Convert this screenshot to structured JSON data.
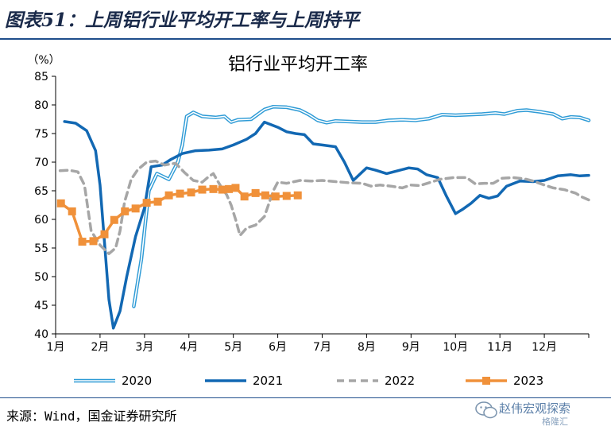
{
  "figure_title": "图表51：上周铝行业平均开工率与上周持平",
  "source_note": "来源：Wind，国金证券研究所",
  "watermark": {
    "text": "赵伟宏观探索",
    "sub": "格隆汇"
  },
  "colors": {
    "s2020": "#2e9bd6",
    "s2021": "#1268b3",
    "s2022": "#a6a6a6",
    "s2023": "#f0913a",
    "title_rule": "#1f4e8c"
  },
  "chart_data": {
    "type": "line",
    "title": "铝行业平均开工率",
    "ylabel": "（%）",
    "ylim": [
      40,
      85
    ],
    "yticks": [
      40,
      45,
      50,
      55,
      60,
      65,
      70,
      75,
      80,
      85
    ],
    "xlim": [
      1,
      13
    ],
    "xticks": [
      {
        "label": "1月",
        "x": 1
      },
      {
        "label": "2月",
        "x": 2
      },
      {
        "label": "3月",
        "x": 3
      },
      {
        "label": "4月",
        "x": 4
      },
      {
        "label": "5月",
        "x": 5
      },
      {
        "label": "6月",
        "x": 6
      },
      {
        "label": "7月",
        "x": 7
      },
      {
        "label": "8月",
        "x": 8
      },
      {
        "label": "9月",
        "x": 9
      },
      {
        "label": "10月",
        "x": 10
      },
      {
        "label": "11月",
        "x": 11
      },
      {
        "label": "12月",
        "x": 12
      }
    ],
    "grid": false,
    "legend_position": "bottom",
    "series": [
      {
        "name": "2020",
        "style": "double",
        "points": [
          [
            2.76,
            44.8
          ],
          [
            2.93,
            53
          ],
          [
            3.1,
            65
          ],
          [
            3.28,
            68
          ],
          [
            3.55,
            67
          ],
          [
            3.75,
            70
          ],
          [
            3.85,
            73
          ],
          [
            3.95,
            78
          ],
          [
            4.1,
            78.7
          ],
          [
            4.3,
            78
          ],
          [
            4.6,
            77.8
          ],
          [
            4.8,
            78
          ],
          [
            4.95,
            77
          ],
          [
            5.1,
            77.4
          ],
          [
            5.4,
            77.5
          ],
          [
            5.7,
            79.2
          ],
          [
            5.9,
            79.7
          ],
          [
            6.2,
            79.6
          ],
          [
            6.5,
            79.1
          ],
          [
            6.7,
            78.3
          ],
          [
            6.9,
            77.3
          ],
          [
            7.1,
            76.9
          ],
          [
            7.3,
            77.2
          ],
          [
            7.6,
            77.1
          ],
          [
            7.9,
            77
          ],
          [
            8.2,
            77
          ],
          [
            8.5,
            77.3
          ],
          [
            8.8,
            77.4
          ],
          [
            9.1,
            77.3
          ],
          [
            9.4,
            77.6
          ],
          [
            9.7,
            78.3
          ],
          [
            10.0,
            78.2
          ],
          [
            10.3,
            78.3
          ],
          [
            10.6,
            78.4
          ],
          [
            10.9,
            78.6
          ],
          [
            11.1,
            78.4
          ],
          [
            11.4,
            79
          ],
          [
            11.6,
            79.1
          ],
          [
            11.9,
            78.8
          ],
          [
            12.2,
            78.4
          ],
          [
            12.4,
            77.6
          ],
          [
            12.6,
            77.9
          ],
          [
            12.8,
            77.8
          ],
          [
            13.0,
            77.3
          ]
        ]
      },
      {
        "name": "2021",
        "style": "solid",
        "points": [
          [
            1.2,
            77.1
          ],
          [
            1.45,
            76.8
          ],
          [
            1.7,
            75.5
          ],
          [
            1.9,
            72
          ],
          [
            2.0,
            66
          ],
          [
            2.1,
            56
          ],
          [
            2.2,
            46
          ],
          [
            2.3,
            41
          ],
          [
            2.45,
            44
          ],
          [
            2.6,
            50
          ],
          [
            2.8,
            57
          ],
          [
            3.0,
            62
          ],
          [
            3.15,
            69.2
          ],
          [
            3.4,
            69.5
          ],
          [
            3.6,
            70.5
          ],
          [
            3.85,
            71.5
          ],
          [
            4.15,
            72
          ],
          [
            4.45,
            72.1
          ],
          [
            4.75,
            72.3
          ],
          [
            5.0,
            73
          ],
          [
            5.3,
            74
          ],
          [
            5.5,
            75
          ],
          [
            5.7,
            77
          ],
          [
            6.0,
            76.1
          ],
          [
            6.2,
            75.3
          ],
          [
            6.4,
            75
          ],
          [
            6.6,
            74.8
          ],
          [
            6.8,
            73.2
          ],
          [
            7.0,
            73
          ],
          [
            7.3,
            72.7
          ],
          [
            7.5,
            70
          ],
          [
            7.7,
            66.8
          ],
          [
            8.0,
            69
          ],
          [
            8.2,
            68.6
          ],
          [
            8.45,
            68
          ],
          [
            8.7,
            68.5
          ],
          [
            8.95,
            69
          ],
          [
            9.15,
            68.8
          ],
          [
            9.35,
            67.8
          ],
          [
            9.6,
            67.3
          ],
          [
            9.8,
            64
          ],
          [
            10.0,
            61
          ],
          [
            10.15,
            61.7
          ],
          [
            10.35,
            62.8
          ],
          [
            10.55,
            64.2
          ],
          [
            10.75,
            63.7
          ],
          [
            10.95,
            64.1
          ],
          [
            11.15,
            65.8
          ],
          [
            11.45,
            66.7
          ],
          [
            11.75,
            66.6
          ],
          [
            12.0,
            66.8
          ],
          [
            12.3,
            67.6
          ],
          [
            12.6,
            67.8
          ],
          [
            12.8,
            67.6
          ],
          [
            13.0,
            67.7
          ]
        ]
      },
      {
        "name": "2022",
        "style": "dashed",
        "points": [
          [
            1.1,
            68.5
          ],
          [
            1.3,
            68.6
          ],
          [
            1.5,
            68.3
          ],
          [
            1.65,
            66
          ],
          [
            1.8,
            58
          ],
          [
            2.0,
            55.5
          ],
          [
            2.2,
            54
          ],
          [
            2.35,
            55
          ],
          [
            2.45,
            58
          ],
          [
            2.55,
            63
          ],
          [
            2.7,
            67
          ],
          [
            2.85,
            68.7
          ],
          [
            3.05,
            70
          ],
          [
            3.25,
            70.2
          ],
          [
            3.45,
            69.5
          ],
          [
            3.7,
            69.8
          ],
          [
            3.9,
            68.2
          ],
          [
            4.1,
            66.8
          ],
          [
            4.3,
            66.5
          ],
          [
            4.45,
            67.5
          ],
          [
            4.55,
            68
          ],
          [
            4.7,
            66
          ],
          [
            4.85,
            64.3
          ],
          [
            4.95,
            62.5
          ],
          [
            5.05,
            60
          ],
          [
            5.15,
            57.2
          ],
          [
            5.3,
            58.5
          ],
          [
            5.5,
            59
          ],
          [
            5.7,
            60.5
          ],
          [
            5.9,
            65
          ],
          [
            6.0,
            66.5
          ],
          [
            6.2,
            66.3
          ],
          [
            6.5,
            66.8
          ],
          [
            6.75,
            66.7
          ],
          [
            7.0,
            66.8
          ],
          [
            7.3,
            66.6
          ],
          [
            7.6,
            66.4
          ],
          [
            7.9,
            66.3
          ],
          [
            8.1,
            65.8
          ],
          [
            8.3,
            66
          ],
          [
            8.55,
            65.8
          ],
          [
            8.8,
            65.5
          ],
          [
            9.0,
            66
          ],
          [
            9.2,
            65.9
          ],
          [
            9.45,
            66.5
          ],
          [
            9.65,
            67
          ],
          [
            9.95,
            67.3
          ],
          [
            10.25,
            67.3
          ],
          [
            10.45,
            66.2
          ],
          [
            10.65,
            66.3
          ],
          [
            10.85,
            66.3
          ],
          [
            11.05,
            67.2
          ],
          [
            11.3,
            67.3
          ],
          [
            11.55,
            67.1
          ],
          [
            11.75,
            66.7
          ],
          [
            12.0,
            66
          ],
          [
            12.2,
            65.5
          ],
          [
            12.45,
            65.2
          ],
          [
            12.7,
            64.6
          ],
          [
            12.85,
            63.9
          ],
          [
            13.0,
            63.4
          ]
        ]
      },
      {
        "name": "2023",
        "style": "marker",
        "points": [
          [
            1.12,
            62.8
          ],
          [
            1.37,
            61.4
          ],
          [
            1.6,
            56.1
          ],
          [
            1.85,
            56.2
          ],
          [
            2.1,
            57.4
          ],
          [
            2.32,
            59.9
          ],
          [
            2.56,
            61.4
          ],
          [
            2.8,
            61.9
          ],
          [
            3.05,
            62.9
          ],
          [
            3.3,
            63.1
          ],
          [
            3.55,
            64.2
          ],
          [
            3.8,
            64.5
          ],
          [
            4.05,
            64.7
          ],
          [
            4.3,
            65.2
          ],
          [
            4.55,
            65.3
          ],
          [
            4.75,
            65.2
          ],
          [
            4.9,
            65.3
          ],
          [
            5.05,
            65.5
          ],
          [
            5.25,
            64
          ],
          [
            5.5,
            64.6
          ],
          [
            5.72,
            64.2
          ],
          [
            5.95,
            64
          ],
          [
            6.2,
            64.1
          ],
          [
            6.45,
            64.2
          ]
        ]
      }
    ]
  }
}
